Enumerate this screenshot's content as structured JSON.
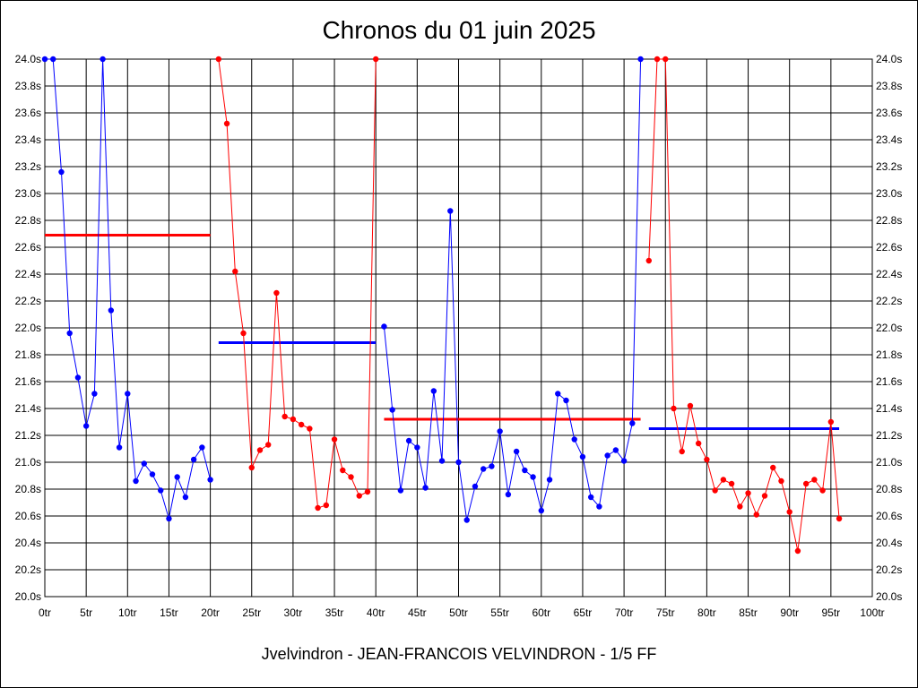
{
  "chart_data": {
    "type": "line",
    "title": "Chronos du 01 juin 2025",
    "footer": "Jvelvindron - JEAN-FRANCOIS VELVINDRON - 1/5 FF",
    "xlim": [
      0,
      100
    ],
    "ylim": [
      20.0,
      24.0
    ],
    "x_ticks": [
      0,
      5,
      10,
      15,
      20,
      25,
      30,
      35,
      40,
      45,
      50,
      55,
      60,
      65,
      70,
      75,
      80,
      85,
      90,
      95,
      100
    ],
    "x_tick_labels": [
      "0tr",
      "5tr",
      "10tr",
      "15tr",
      "20tr",
      "25tr",
      "30tr",
      "35tr",
      "40tr",
      "45tr",
      "50tr",
      "55tr",
      "60tr",
      "65tr",
      "70tr",
      "75tr",
      "80tr",
      "85tr",
      "90tr",
      "95tr",
      "100tr"
    ],
    "y_ticks": [
      20.0,
      20.2,
      20.4,
      20.6,
      20.8,
      21.0,
      21.2,
      21.4,
      21.6,
      21.8,
      22.0,
      22.2,
      22.4,
      22.6,
      22.8,
      23.0,
      23.2,
      23.4,
      23.6,
      23.8,
      24.0
    ],
    "y_tick_labels": [
      "20.0s",
      "20.2s",
      "20.4s",
      "20.6s",
      "20.8s",
      "21.0s",
      "21.2s",
      "21.4s",
      "21.6s",
      "21.8s",
      "22.0s",
      "22.2s",
      "22.4s",
      "22.6s",
      "22.8s",
      "23.0s",
      "23.2s",
      "23.4s",
      "23.6s",
      "23.8s",
      "24.0s"
    ],
    "grid": true,
    "legend": "none",
    "series": [
      {
        "color": "#0000ff",
        "x": [
          0,
          1,
          2,
          3,
          4,
          5,
          6,
          7,
          8,
          9,
          10,
          11,
          12,
          13,
          14,
          15,
          16,
          17,
          18,
          19,
          20
        ],
        "y": [
          24.0,
          24.0,
          23.16,
          21.96,
          21.63,
          21.27,
          21.51,
          24.0,
          22.13,
          21.11,
          21.51,
          20.86,
          20.99,
          20.91,
          20.79,
          20.58,
          20.89,
          20.74,
          21.02,
          21.11,
          20.87
        ]
      },
      {
        "color": "#ff0000",
        "x": [
          21,
          22,
          23,
          24,
          25,
          26,
          27,
          28,
          29,
          30,
          31,
          32,
          33,
          34,
          35,
          36,
          37,
          38,
          39,
          40
        ],
        "y": [
          24.0,
          23.52,
          22.42,
          21.96,
          20.96,
          21.09,
          21.13,
          22.26,
          21.34,
          21.32,
          21.28,
          21.25,
          20.66,
          20.68,
          21.17,
          20.94,
          20.89,
          20.75,
          20.78,
          24.0
        ]
      },
      {
        "color": "#0000ff",
        "x": [
          41,
          42,
          43,
          44,
          45,
          46,
          47,
          48,
          49,
          50,
          51,
          52,
          53,
          54,
          55,
          56,
          57,
          58,
          59,
          60,
          61,
          62,
          63,
          64,
          65,
          66,
          67,
          68,
          69,
          70,
          71,
          72
        ],
        "y": [
          22.01,
          21.39,
          20.79,
          21.16,
          21.11,
          20.81,
          21.53,
          21.01,
          22.87,
          21.0,
          20.57,
          20.82,
          20.95,
          20.97,
          21.23,
          20.76,
          21.08,
          20.94,
          20.89,
          20.64,
          20.87,
          21.51,
          21.46,
          21.17,
          21.04,
          20.74,
          20.67,
          21.05,
          21.09,
          21.01,
          21.29,
          24.0
        ]
      },
      {
        "color": "#ff0000",
        "x": [
          73,
          74,
          75,
          76,
          77,
          78,
          79,
          80,
          81,
          82,
          83,
          84,
          85,
          86,
          87,
          88,
          89,
          90,
          91,
          92,
          93,
          94,
          95,
          96
        ],
        "y": [
          22.5,
          24.0,
          24.0,
          21.4,
          21.08,
          21.42,
          21.14,
          21.02,
          20.79,
          20.87,
          20.84,
          20.67,
          20.77,
          20.61,
          20.75,
          20.96,
          20.86,
          20.63,
          20.34,
          20.84,
          20.87,
          20.79,
          21.3,
          20.58
        ]
      }
    ],
    "average_lines": [
      {
        "color": "#ff0000",
        "x_start": 0,
        "x_end": 20,
        "y": 22.69
      },
      {
        "color": "#0000ff",
        "x_start": 21,
        "x_end": 40,
        "y": 21.89
      },
      {
        "color": "#ff0000",
        "x_start": 41,
        "x_end": 72,
        "y": 21.32
      },
      {
        "color": "#0000ff",
        "x_start": 73,
        "x_end": 96,
        "y": 21.25
      }
    ]
  }
}
